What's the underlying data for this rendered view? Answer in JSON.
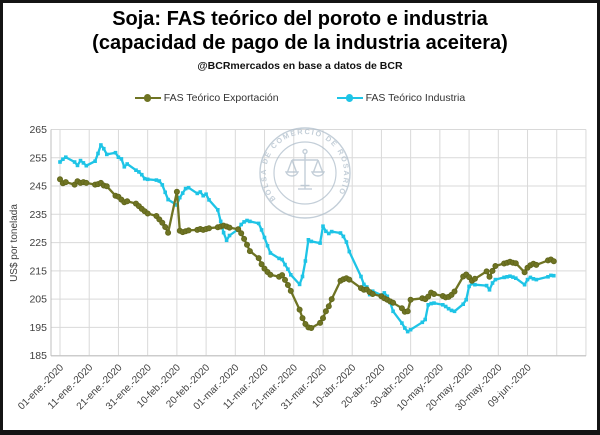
{
  "title": {
    "line1": "Soja: FAS teórico del poroto e industria",
    "line2": "(capacidad de pago de la industria aceitera)"
  },
  "subtitle": "@BCRmercados en base a datos de BCR",
  "legend": [
    {
      "label": "FAS Teórico Exportación",
      "color": "#6F7423"
    },
    {
      "label": "FAS Teórico Industria",
      "color": "#1EC4E6"
    }
  ],
  "watermark": {
    "text": "BOLSA DE COMERCIO DE ROSARIO",
    "color": "#AFBECB"
  },
  "colors": {
    "grid": "#D9D9D9",
    "axis": "#BFBFBF",
    "tick_text": "#404040",
    "exportacion": "#6F7423",
    "exportacion_marker": "#60661C",
    "industria": "#1EC4E6"
  },
  "y_axis": {
    "title": "US$ por tonelada",
    "ticks": [
      265,
      255,
      245,
      235,
      225,
      215,
      205,
      195,
      185
    ],
    "min": 185,
    "max": 265
  },
  "x_axis": {
    "tick_labels": [
      "01-ene.-2020",
      "11-ene.-2020",
      "21-ene.-2020",
      "31-ene.-2020",
      "10-feb.-2020",
      "20-feb.-2020",
      "01-mar.-2020",
      "11-mar.-2020",
      "21-mar.-2020",
      "31-mar.-2020",
      "10-abr.-2020",
      "20-abr.-2020",
      "30-abr.-2020",
      "10-may.-2020",
      "20-may.-2020",
      "30-may.-2020",
      "09-jun.-2020"
    ],
    "tick_day_offsets": [
      0,
      10,
      20,
      30,
      40,
      50,
      60,
      70,
      80,
      90,
      100,
      110,
      120,
      130,
      140,
      150,
      160
    ],
    "extra_grid_offsets": [
      170,
      180
    ]
  },
  "chart_data": {
    "type": "line",
    "title": "Soja: FAS teórico del poroto e industria (capacidad de pago de la industria aceitera)",
    "xlabel": "",
    "ylabel": "US$ por tonelada",
    "ylim": [
      185,
      265
    ],
    "grid": true,
    "legend_position": "top",
    "dates": [
      "01-ene",
      "02-ene",
      "03-ene",
      "06-ene",
      "07-ene",
      "08-ene",
      "09-ene",
      "10-ene",
      "13-ene",
      "14-ene",
      "15-ene",
      "16-ene",
      "17-ene",
      "20-ene",
      "21-ene",
      "22-ene",
      "23-ene",
      "24-ene",
      "27-ene",
      "28-ene",
      "29-ene",
      "30-ene",
      "31-ene",
      "03-feb",
      "04-feb",
      "05-feb",
      "06-feb",
      "07-feb",
      "10-feb",
      "11-feb",
      "12-feb",
      "13-feb",
      "14-feb",
      "17-feb",
      "18-feb",
      "19-feb",
      "20-feb",
      "21-feb",
      "24-feb",
      "25-feb",
      "26-feb",
      "27-feb",
      "28-feb",
      "02-mar",
      "03-mar",
      "04-mar",
      "05-mar",
      "06-mar",
      "09-mar",
      "10-mar",
      "11-mar",
      "12-mar",
      "13-mar",
      "16-mar",
      "17-mar",
      "18-mar",
      "19-mar",
      "20-mar",
      "23-mar",
      "24-mar",
      "25-mar",
      "26-mar",
      "27-mar",
      "30-mar",
      "31-mar",
      "01-abr",
      "02-abr",
      "03-abr",
      "06-abr",
      "07-abr",
      "08-abr",
      "09-abr",
      "13-abr",
      "14-abr",
      "15-abr",
      "16-abr",
      "17-abr",
      "20-abr",
      "21-abr",
      "22-abr",
      "23-abr",
      "24-abr",
      "27-abr",
      "28-abr",
      "29-abr",
      "30-abr",
      "04-may",
      "05-may",
      "06-may",
      "07-may",
      "08-may",
      "11-may",
      "12-may",
      "13-may",
      "14-may",
      "15-may",
      "18-may",
      "19-may",
      "20-may",
      "21-may",
      "22-may",
      "26-may",
      "27-may",
      "28-may",
      "29-may",
      "01-jun",
      "02-jun",
      "03-jun",
      "04-jun",
      "05-jun",
      "08-jun",
      "09-jun",
      "10-jun",
      "11-jun",
      "12-jun",
      "16-jun",
      "17-jun",
      "18-jun"
    ],
    "day_offsets": [
      0,
      1,
      2,
      5,
      6,
      7,
      8,
      9,
      12,
      13,
      14,
      15,
      16,
      19,
      20,
      21,
      22,
      23,
      26,
      27,
      28,
      29,
      30,
      33,
      34,
      35,
      36,
      37,
      40,
      41,
      42,
      43,
      44,
      47,
      48,
      49,
      50,
      51,
      54,
      55,
      56,
      57,
      58,
      61,
      62,
      63,
      64,
      65,
      68,
      69,
      70,
      71,
      72,
      75,
      76,
      77,
      78,
      79,
      82,
      83,
      84,
      85,
      86,
      89,
      90,
      91,
      92,
      93,
      96,
      97,
      98,
      99,
      103,
      104,
      105,
      106,
      107,
      110,
      111,
      112,
      113,
      114,
      117,
      118,
      119,
      120,
      124,
      125,
      126,
      127,
      128,
      131,
      132,
      133,
      134,
      135,
      138,
      139,
      140,
      141,
      142,
      146,
      147,
      148,
      149,
      152,
      153,
      154,
      155,
      156,
      159,
      160,
      161,
      162,
      163,
      167,
      168,
      169
    ],
    "series": [
      {
        "name": "FAS Teórico Exportación",
        "color": "#6F7423",
        "marker": "circle",
        "values": [
          247.4,
          246.0,
          246.4,
          245.5,
          246.7,
          246.1,
          246.4,
          246.1,
          245.5,
          245.7,
          246.1,
          245.2,
          244.9,
          241.6,
          241.2,
          240.2,
          239.3,
          239.6,
          238.8,
          237.9,
          236.9,
          236.1,
          235.3,
          234.4,
          233.2,
          232.0,
          230.5,
          228.5,
          243.0,
          229.2,
          228.7,
          229.0,
          229.3,
          229.5,
          229.8,
          229.5,
          229.8,
          230.1,
          230.4,
          230.7,
          231.0,
          230.7,
          230.3,
          229.7,
          228.3,
          226.3,
          224.2,
          222.0,
          219.5,
          217.3,
          215.8,
          214.6,
          213.6,
          212.9,
          213.5,
          211.8,
          210.0,
          207.9,
          201.3,
          198.3,
          196.2,
          195.0,
          194.8,
          196.6,
          198.3,
          200.7,
          202.5,
          205.0,
          211.5,
          212.0,
          212.4,
          211.9,
          208.9,
          208.3,
          208.4,
          207.5,
          206.8,
          206.0,
          205.3,
          204.8,
          204.2,
          203.7,
          201.8,
          200.5,
          200.7,
          204.8,
          205.3,
          205.0,
          205.9,
          207.3,
          206.8,
          206.1,
          205.6,
          205.8,
          206.5,
          207.7,
          213.0,
          213.7,
          212.8,
          211.5,
          212.2,
          214.8,
          212.9,
          215.0,
          216.7,
          217.6,
          217.9,
          218.2,
          217.9,
          217.7,
          214.5,
          216.1,
          217.0,
          217.5,
          217.1,
          218.7,
          219.0,
          218.4
        ]
      },
      {
        "name": "FAS Teórico Industria",
        "color": "#1EC4E6",
        "marker": "square",
        "values": [
          253.5,
          254.5,
          255.2,
          253.5,
          252.3,
          254.0,
          253.2,
          252.2,
          253.8,
          256.5,
          259.5,
          258.2,
          256.2,
          256.8,
          255.2,
          254.6,
          251.8,
          252.8,
          250.6,
          250.0,
          249.0,
          247.6,
          247.4,
          247.1,
          246.8,
          245.4,
          242.8,
          240.2,
          238.3,
          240.9,
          242.5,
          244.1,
          244.4,
          242.4,
          242.9,
          241.6,
          242.1,
          240.1,
          236.6,
          232.5,
          228.5,
          225.8,
          227.5,
          229.7,
          231.4,
          232.3,
          232.8,
          232.5,
          231.8,
          229.5,
          226.8,
          223.9,
          221.3,
          219.4,
          219.0,
          217.2,
          215.6,
          213.6,
          210.2,
          213.0,
          218.5,
          226.0,
          225.4,
          224.8,
          230.8,
          229.0,
          228.2,
          228.9,
          228.4,
          227.2,
          225.2,
          221.8,
          213.0,
          210.2,
          209.3,
          206.6,
          207.8,
          206.4,
          207.2,
          206.0,
          203.8,
          200.7,
          196.5,
          194.8,
          193.5,
          194.2,
          196.8,
          197.8,
          203.0,
          203.4,
          203.6,
          203.0,
          202.4,
          201.6,
          201.0,
          200.7,
          203.2,
          204.8,
          209.5,
          210.5,
          210.1,
          209.8,
          208.3,
          210.7,
          211.9,
          212.7,
          212.9,
          213.1,
          212.8,
          212.4,
          210.1,
          211.9,
          212.7,
          212.2,
          211.9,
          212.9,
          213.4,
          213.3
        ]
      }
    ]
  }
}
